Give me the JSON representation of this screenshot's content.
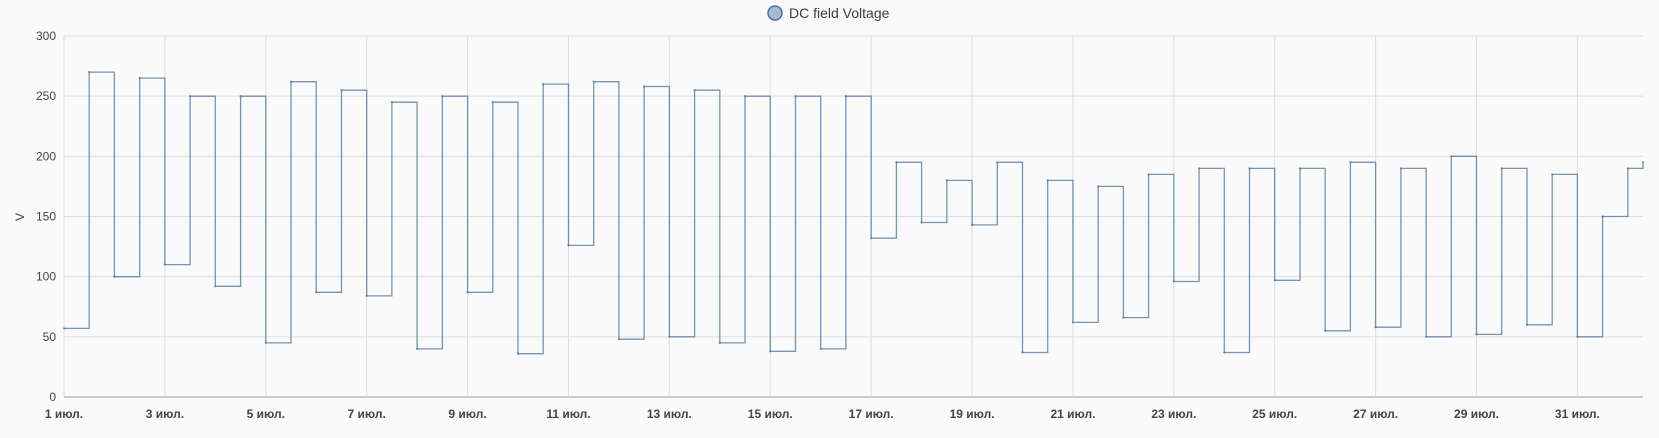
{
  "chart_data": {
    "type": "line",
    "title": "",
    "ylabel": "V",
    "xlabel": "",
    "ylim": [
      0,
      300
    ],
    "yticks": [
      0,
      50,
      100,
      150,
      200,
      250,
      300
    ],
    "xlim": [
      1,
      32.3
    ],
    "xticks": [
      {
        "day": 1,
        "label": "1 июл."
      },
      {
        "day": 3,
        "label": "3 июл."
      },
      {
        "day": 5,
        "label": "5 июл."
      },
      {
        "day": 7,
        "label": "7 июл."
      },
      {
        "day": 9,
        "label": "9 июл."
      },
      {
        "day": 11,
        "label": "11 июл."
      },
      {
        "day": 13,
        "label": "13 июл."
      },
      {
        "day": 15,
        "label": "15 июл."
      },
      {
        "day": 17,
        "label": "17 июл."
      },
      {
        "day": 19,
        "label": "19 июл."
      },
      {
        "day": 21,
        "label": "21 июл."
      },
      {
        "day": 23,
        "label": "23 июл."
      },
      {
        "day": 25,
        "label": "25 июл."
      },
      {
        "day": 27,
        "label": "27 июл."
      },
      {
        "day": 29,
        "label": "29 июл."
      },
      {
        "day": 31,
        "label": "31 июл."
      }
    ],
    "grid": true,
    "legend_position": "top-center",
    "series": [
      {
        "name": "DC field Voltage",
        "color": "#4a739c",
        "x": [
          1.0,
          1.5,
          2.0,
          2.5,
          3.0,
          3.5,
          4.0,
          4.5,
          5.0,
          5.5,
          6.0,
          6.5,
          7.0,
          7.5,
          8.0,
          8.5,
          9.0,
          9.5,
          10.0,
          10.5,
          11.0,
          11.5,
          12.0,
          12.5,
          13.0,
          13.5,
          14.0,
          14.5,
          15.0,
          15.5,
          16.0,
          16.5,
          17.0,
          17.5,
          18.0,
          18.5,
          19.0,
          19.5,
          20.0,
          20.5,
          21.0,
          21.5,
          22.0,
          22.5,
          23.0,
          23.5,
          24.0,
          24.5,
          25.0,
          25.5,
          26.0,
          26.5,
          27.0,
          27.5,
          28.0,
          28.5,
          29.0,
          29.5,
          30.0,
          30.5,
          31.0,
          31.5,
          32.0,
          32.3
        ],
        "values": [
          57,
          270,
          100,
          265,
          110,
          250,
          92,
          250,
          45,
          262,
          87,
          255,
          84,
          245,
          40,
          250,
          87,
          245,
          36,
          260,
          126,
          262,
          48,
          258,
          50,
          255,
          45,
          250,
          38,
          250,
          40,
          250,
          132,
          195,
          145,
          180,
          143,
          195,
          37,
          180,
          62,
          175,
          66,
          185,
          96,
          190,
          37,
          190,
          97,
          190,
          55,
          195,
          58,
          190,
          50,
          200,
          52,
          190,
          60,
          185,
          50,
          150,
          190,
          195
        ]
      }
    ]
  }
}
